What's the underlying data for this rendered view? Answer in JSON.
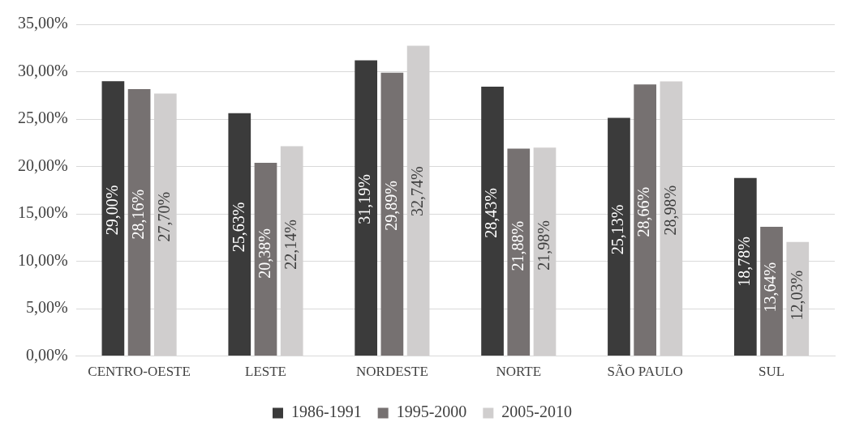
{
  "chart_data": {
    "type": "bar",
    "categories": [
      "CENTRO-OESTE",
      "LESTE",
      "NORDESTE",
      "NORTE",
      "SÃO PAULO",
      "SUL"
    ],
    "series": [
      {
        "name": "1986-1991",
        "color": "#3b3b3b",
        "values": [
          29.0,
          25.63,
          31.19,
          28.43,
          25.13,
          18.78
        ],
        "value_labels": [
          "29,00%",
          "25,63%",
          "31,19%",
          "28,43%",
          "25,13%",
          "18,78%"
        ]
      },
      {
        "name": "1995-2000",
        "color": "#767171",
        "values": [
          28.16,
          20.38,
          29.89,
          21.88,
          28.66,
          13.64
        ],
        "value_labels": [
          "28,16%",
          "20,38%",
          "29,89%",
          "21,88%",
          "28,66%",
          "13,64%"
        ]
      },
      {
        "name": "2005-2010",
        "color": "#d0cece",
        "values": [
          27.7,
          22.14,
          32.74,
          21.98,
          28.98,
          12.03
        ],
        "value_labels": [
          "27,70%",
          "22,14%",
          "32,74%",
          "21,98%",
          "28,98%",
          "12,03%"
        ]
      }
    ],
    "ylim": [
      0,
      35
    ],
    "yticks": [
      {
        "value": 0,
        "label": "0,00%"
      },
      {
        "value": 5,
        "label": "5,00%"
      },
      {
        "value": 10,
        "label": "10,00%"
      },
      {
        "value": 15,
        "label": "15,00%"
      },
      {
        "value": 20,
        "label": "20,00%"
      },
      {
        "value": 25,
        "label": "25,00%"
      },
      {
        "value": 30,
        "label": "30,00%"
      },
      {
        "value": 35,
        "label": "35,00%"
      }
    ],
    "grid": "y",
    "legend": "bottom"
  }
}
